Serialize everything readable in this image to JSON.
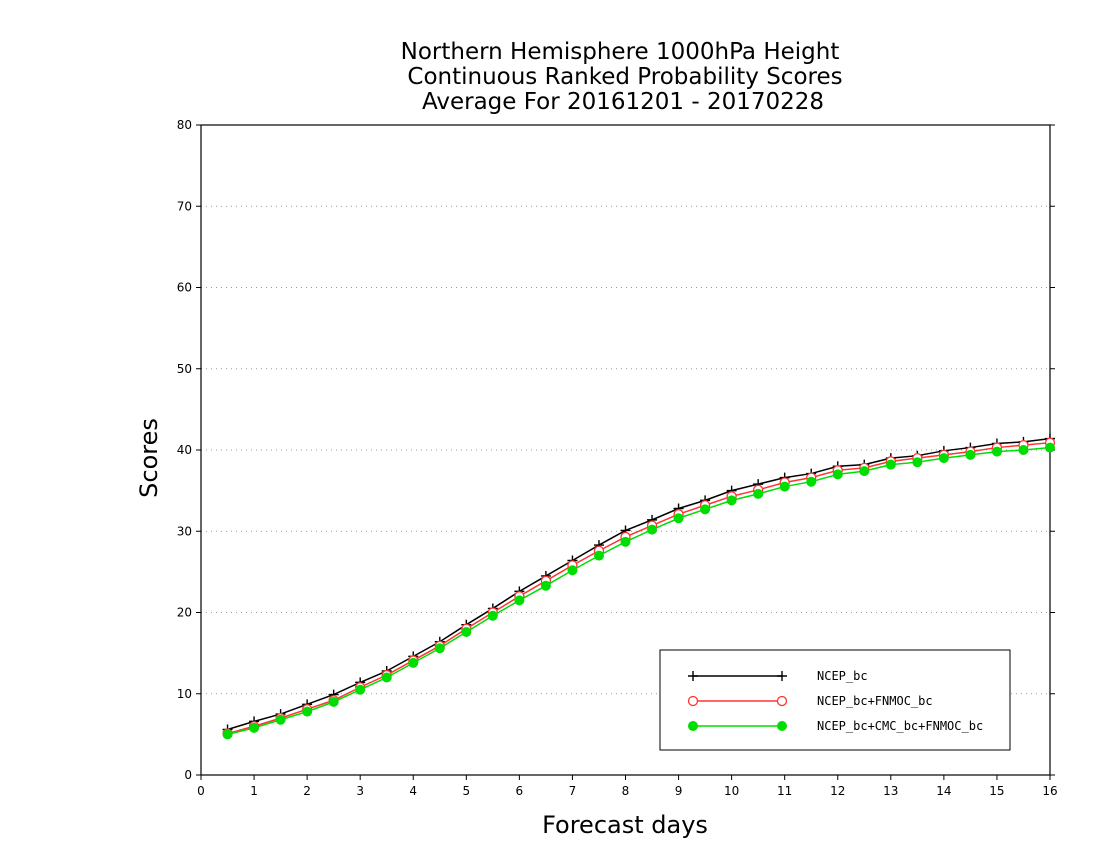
{
  "chart_data": {
    "type": "line",
    "title_lines": [
      "Northern Hemisphere 1000hPa Height",
      "Continuous Ranked Probability Scores",
      "Average For 20161201 - 20170228"
    ],
    "xlabel": "Forecast days",
    "ylabel": "Scores",
    "xlim": [
      0,
      16
    ],
    "ylim": [
      0,
      80
    ],
    "xticks": [
      "0",
      "1",
      "2",
      "3",
      "4",
      "5",
      "6",
      "7",
      "8",
      "9",
      "10",
      "11",
      "12",
      "13",
      "14",
      "15",
      "16"
    ],
    "yticks": [
      "0",
      "10",
      "20",
      "30",
      "40",
      "50",
      "60",
      "70",
      "80"
    ],
    "grid": "horizontal dotted",
    "legend_position": "bottom-right",
    "x": [
      0.5,
      1,
      1.5,
      2,
      2.5,
      3,
      3.5,
      4,
      4.5,
      5,
      5.5,
      6,
      6.5,
      7,
      7.5,
      8,
      8.5,
      9,
      9.5,
      10,
      10.5,
      11,
      11.5,
      12,
      12.5,
      13,
      13.5,
      14,
      14.5,
      15,
      15.5,
      16
    ],
    "series": [
      {
        "name": "NCEP_bc",
        "color": "#000000",
        "marker": "plus",
        "values": [
          5.6,
          6.6,
          7.5,
          8.7,
          9.9,
          11.4,
          12.8,
          14.6,
          16.4,
          18.5,
          20.5,
          22.6,
          24.5,
          26.4,
          28.3,
          30.1,
          31.4,
          32.8,
          33.8,
          35.0,
          35.8,
          36.6,
          37.1,
          38.0,
          38.2,
          39.0,
          39.3,
          39.9,
          40.3,
          40.8,
          41.0,
          41.4
        ]
      },
      {
        "name": "NCEP_bc+FNMOC_bc",
        "color": "#ff3333",
        "marker": "open-circle",
        "values": [
          5.1,
          6.0,
          7.0,
          8.1,
          9.2,
          10.8,
          12.3,
          14.1,
          15.9,
          18.0,
          20.0,
          22.0,
          23.9,
          25.8,
          27.6,
          29.3,
          30.7,
          32.1,
          33.2,
          34.3,
          35.1,
          36.0,
          36.6,
          37.5,
          37.8,
          38.6,
          39.0,
          39.4,
          39.8,
          40.3,
          40.6,
          40.9
        ]
      },
      {
        "name": "NCEP_bc+CMC_bc+FNMOC_bc",
        "color": "#00dd00",
        "marker": "filled-circle",
        "values": [
          5.0,
          5.8,
          6.8,
          7.8,
          9.0,
          10.5,
          12.0,
          13.8,
          15.6,
          17.6,
          19.6,
          21.5,
          23.3,
          25.2,
          27.0,
          28.7,
          30.2,
          31.6,
          32.7,
          33.8,
          34.6,
          35.5,
          36.1,
          37.0,
          37.4,
          38.2,
          38.5,
          39.0,
          39.4,
          39.8,
          40.0,
          40.3
        ]
      }
    ]
  }
}
